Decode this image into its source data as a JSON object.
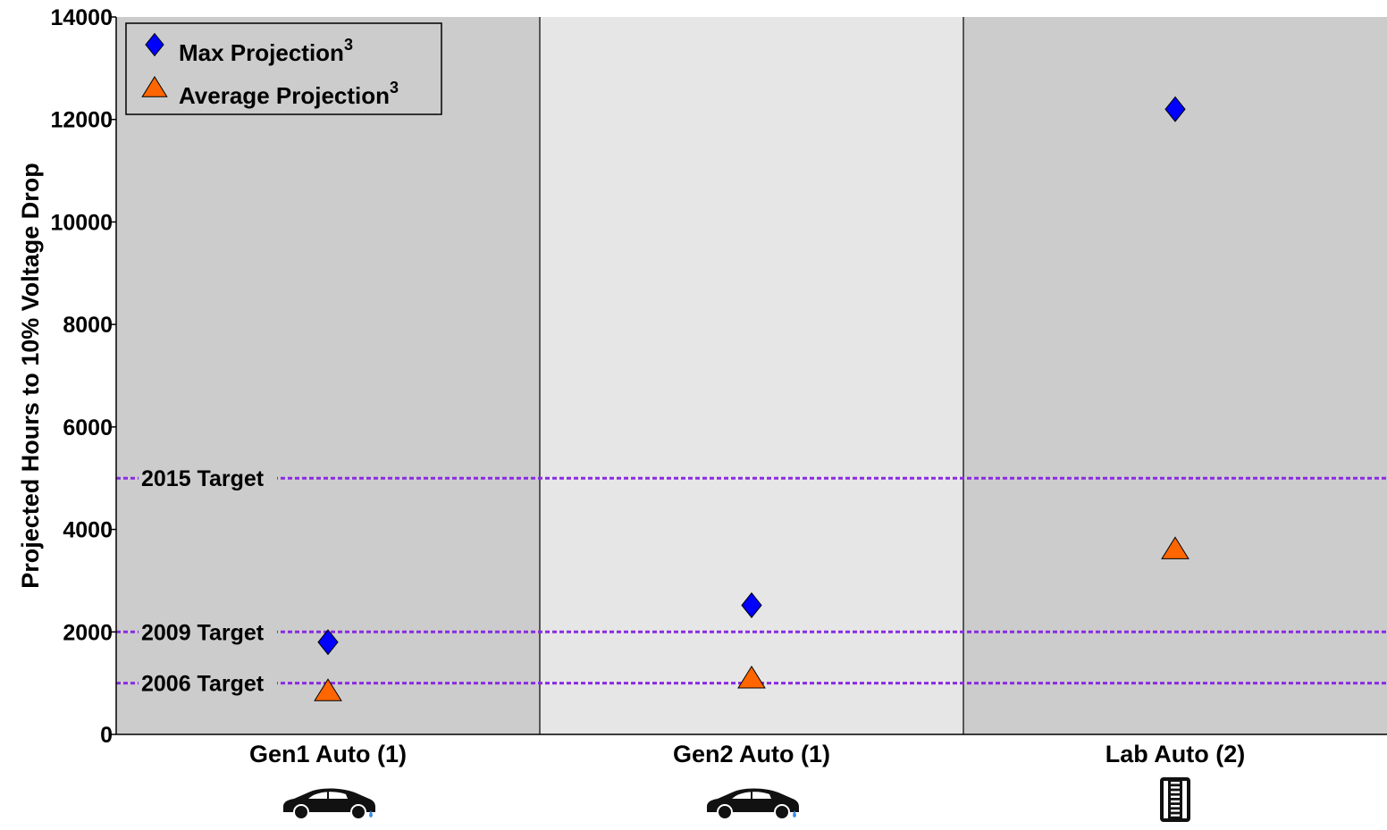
{
  "chart_data": {
    "type": "scatter",
    "title": "",
    "xlabel": "",
    "ylabel": "Projected Hours to 10% Voltage Drop",
    "ylim": [
      0,
      14000
    ],
    "yticks": [
      0,
      2000,
      4000,
      6000,
      8000,
      10000,
      12000,
      14000
    ],
    "categories": [
      "Gen1 Auto (1)",
      "Gen2 Auto (1)",
      "Lab Auto (2)"
    ],
    "category_icons": [
      "car-icon",
      "car-icon",
      "fuel-cell-stack-icon"
    ],
    "category_backgrounds": [
      "#cccccc",
      "#e6e6e6",
      "#cccccc"
    ],
    "series": [
      {
        "name": "Max Projection",
        "superscript": "3",
        "marker": "diamond",
        "color": "#0000ff",
        "values": [
          1800,
          2520,
          12200
        ]
      },
      {
        "name": "Average Projection",
        "superscript": "3",
        "marker": "triangle",
        "color": "#ff6600",
        "values": [
          850,
          1100,
          3620
        ]
      }
    ],
    "reference_lines": [
      {
        "label": "2015 Target",
        "value": 5000
      },
      {
        "label": "2009 Target",
        "value": 2000
      },
      {
        "label": "2006 Target",
        "value": 1000
      }
    ],
    "reference_line_color": "#8a2be2",
    "legend_position": "top-left",
    "grid": false
  }
}
